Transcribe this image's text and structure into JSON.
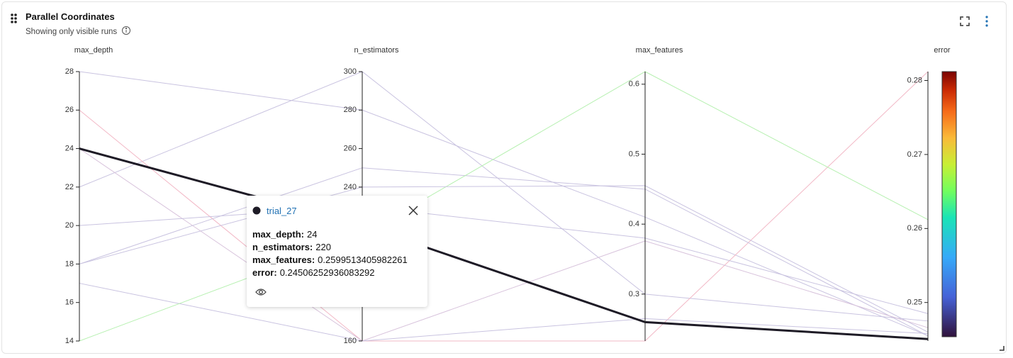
{
  "header": {
    "title": "Parallel Coordinates",
    "subtitle": "Showing only visible runs"
  },
  "chart_data": {
    "type": "parallel",
    "dimensions": [
      {
        "label": "max_depth",
        "ylim": [
          14,
          28
        ],
        "yticks": [
          14,
          16,
          18,
          20,
          22,
          24,
          26,
          28
        ]
      },
      {
        "label": "n_estimators",
        "ylim": [
          160,
          300
        ],
        "yticks": [
          160,
          180,
          200,
          220,
          240,
          260,
          280,
          300
        ]
      },
      {
        "label": "max_features",
        "ylim": [
          0.233,
          0.618
        ],
        "yticks": [
          0.3,
          0.4,
          0.5,
          0.6
        ]
      },
      {
        "label": "error",
        "ylim": [
          0.2448,
          0.2812
        ],
        "yticks": [
          0.25,
          0.26,
          0.27,
          0.28
        ],
        "colorbar": true
      }
    ],
    "runs": [
      {
        "color": "#c9c3e0",
        "values": [
          28,
          280,
          0.41,
          0.2455
        ]
      },
      {
        "color": "#c9c3e0",
        "values": [
          22,
          300,
          0.3,
          0.2475
        ]
      },
      {
        "color": "#f2b8c6",
        "values": [
          26,
          160,
          0.233,
          0.2812
        ]
      },
      {
        "color": "#c9c3e0",
        "values": [
          18,
          250,
          0.45,
          0.2455
        ]
      },
      {
        "color": "#c9c3e0",
        "values": [
          17,
          160,
          0.265,
          0.2458
        ]
      },
      {
        "color": "#b6f0b0",
        "values": [
          14,
          215,
          0.618,
          0.2612
        ]
      },
      {
        "color": "#c9c3e0",
        "values": [
          18,
          240,
          0.455,
          0.246
        ]
      },
      {
        "color": "#d8c3dc",
        "values": [
          24,
          160,
          0.376,
          0.2466
        ]
      },
      {
        "color": "#c9c3e0",
        "values": [
          20,
          230,
          0.38,
          0.2485
        ]
      },
      {
        "name": "trial_27",
        "color": "#1e1b26",
        "highlight": true,
        "values": [
          24,
          220,
          0.2599513405982261,
          0.24506252936083292
        ]
      }
    ],
    "tooltip": {
      "run": 9,
      "labels": [
        "max_depth:",
        "n_estimators:",
        "max_features:",
        "error:"
      ]
    }
  }
}
